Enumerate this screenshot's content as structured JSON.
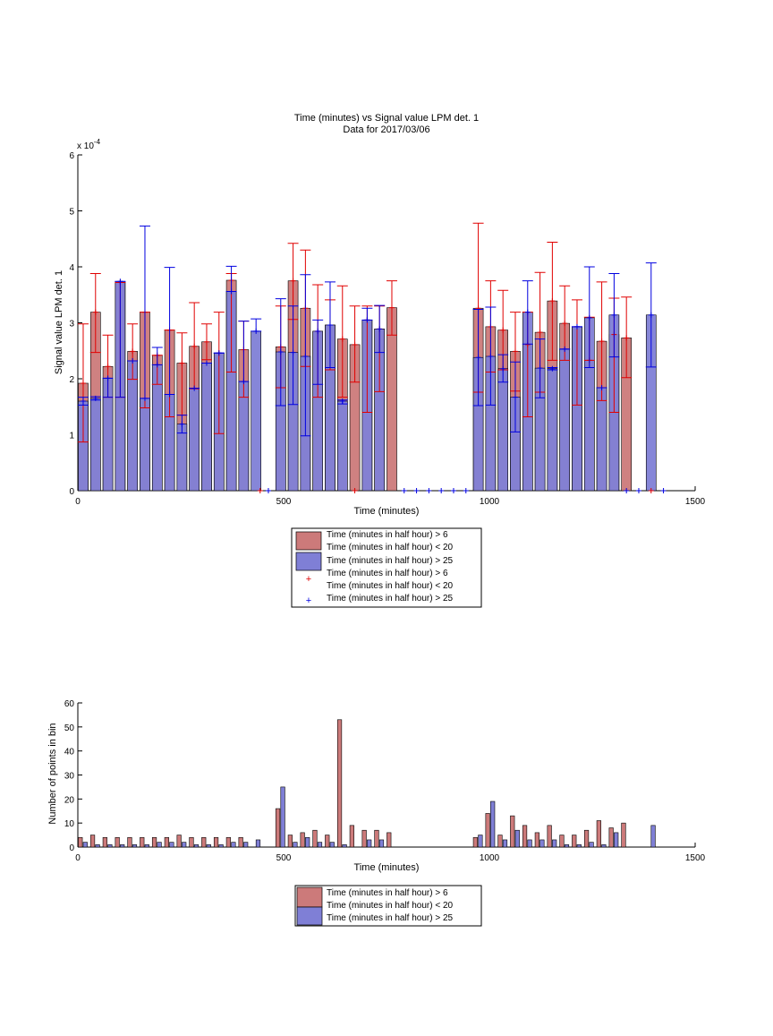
{
  "chart_data": [
    {
      "type": "bar",
      "title": "Time (minutes) vs Signal value LPM det. 1",
      "subtitle": "Data for 2017/03/06",
      "xlabel": "Time (minutes)",
      "ylabel": "Signal value LPM det. 1",
      "y_exponent_label": "x 10",
      "y_exponent_power": "-4",
      "xlim": [
        0,
        1500
      ],
      "ylim": [
        0,
        6
      ],
      "xticks": [
        0,
        500,
        1000,
        1500
      ],
      "yticks": [
        0,
        1,
        2,
        3,
        4,
        5,
        6
      ],
      "bar_width_minutes": 24,
      "colors": {
        "red_series": "#cc7a7a",
        "blue_series": "#7f7fd6",
        "red_line": "#e00000",
        "blue_line": "#0000e0"
      },
      "legend": [
        {
          "label_lines": [
            "Time (minutes in half hour) > 6",
            "Time (minutes in half hour) < 20"
          ],
          "kind": "patch",
          "color": "#cc7a7a"
        },
        {
          "label_lines": [
            "Time (minutes in half hour) > 25"
          ],
          "kind": "patch",
          "color": "#7f7fd6"
        },
        {
          "label_lines": [
            "Time (minutes in half hour) > 6",
            "Time (minutes in half hour) < 20"
          ],
          "kind": "marker",
          "color": "#e00000"
        },
        {
          "label_lines": [
            "Time (minutes in half hour) > 25"
          ],
          "kind": "marker",
          "color": "#0000e0"
        }
      ],
      "series": [
        {
          "name": "Time (minutes in half hour) > 6 Time (minutes in half hour) < 20",
          "points": [
            {
              "x": 13,
              "y": 1.92,
              "lo": 0.87,
              "hi": 2.98
            },
            {
              "x": 43,
              "y": 3.19,
              "lo": 2.47,
              "hi": 3.88
            },
            {
              "x": 73,
              "y": 2.22,
              "lo": 1.67,
              "hi": 2.78
            },
            {
              "x": 103,
              "y": 3.72,
              "lo": 1.67,
              "hi": 3.72
            },
            {
              "x": 133,
              "y": 2.49,
              "lo": 1.99,
              "hi": 2.98
            },
            {
              "x": 163,
              "y": 3.19,
              "lo": 1.48,
              "hi": 3.19
            },
            {
              "x": 193,
              "y": 2.42,
              "lo": 1.9,
              "hi": 2.42
            },
            {
              "x": 223,
              "y": 2.87,
              "lo": 1.32,
              "hi": 2.87
            },
            {
              "x": 253,
              "y": 2.28,
              "lo": 1.35,
              "hi": 2.82
            },
            {
              "x": 283,
              "y": 2.58,
              "lo": 1.82,
              "hi": 3.36
            },
            {
              "x": 313,
              "y": 2.66,
              "lo": 2.34,
              "hi": 2.98
            },
            {
              "x": 343,
              "y": 2.46,
              "lo": 1.02,
              "hi": 3.19
            },
            {
              "x": 373,
              "y": 3.76,
              "lo": 2.12,
              "hi": 3.88
            },
            {
              "x": 403,
              "y": 2.52,
              "lo": 1.67,
              "hi": 3.03
            },
            {
              "x": 493,
              "y": 2.57,
              "lo": 1.84,
              "hi": 3.3
            },
            {
              "x": 523,
              "y": 3.75,
              "lo": 3.06,
              "hi": 4.42
            },
            {
              "x": 553,
              "y": 3.26,
              "lo": 2.22,
              "hi": 4.3
            },
            {
              "x": 583,
              "y": 2.85,
              "lo": 1.67,
              "hi": 3.68
            },
            {
              "x": 613,
              "y": 2.96,
              "lo": 2.16,
              "hi": 3.41
            },
            {
              "x": 643,
              "y": 2.71,
              "lo": 1.67,
              "hi": 3.66
            },
            {
              "x": 673,
              "y": 2.61,
              "lo": 1.94,
              "hi": 3.3
            },
            {
              "x": 703,
              "y": 3.05,
              "lo": 1.4,
              "hi": 3.3
            },
            {
              "x": 733,
              "y": 2.89,
              "lo": 1.77,
              "hi": 3.3
            },
            {
              "x": 763,
              "y": 3.27,
              "lo": 2.78,
              "hi": 3.75
            },
            {
              "x": 973,
              "y": 3.26,
              "lo": 1.76,
              "hi": 4.78
            },
            {
              "x": 1003,
              "y": 2.93,
              "lo": 2.12,
              "hi": 3.75
            },
            {
              "x": 1033,
              "y": 2.87,
              "lo": 2.16,
              "hi": 3.58
            },
            {
              "x": 1063,
              "y": 2.49,
              "lo": 1.78,
              "hi": 3.19
            },
            {
              "x": 1093,
              "y": 2.61,
              "lo": 1.32,
              "hi": 3.19
            },
            {
              "x": 1123,
              "y": 2.83,
              "lo": 1.76,
              "hi": 3.9
            },
            {
              "x": 1153,
              "y": 3.39,
              "lo": 2.33,
              "hi": 4.44
            },
            {
              "x": 1183,
              "y": 2.99,
              "lo": 2.33,
              "hi": 3.66
            },
            {
              "x": 1213,
              "y": 2.93,
              "lo": 1.53,
              "hi": 3.41
            },
            {
              "x": 1243,
              "y": 2.33,
              "lo": 2.33,
              "hi": 3.1
            },
            {
              "x": 1273,
              "y": 2.67,
              "lo": 1.61,
              "hi": 3.73
            },
            {
              "x": 1303,
              "y": 2.79,
              "lo": 1.4,
              "hi": 3.44
            },
            {
              "x": 1333,
              "y": 2.73,
              "lo": 2.02,
              "hi": 3.46
            }
          ],
          "zero_markers_x": [
            443,
            673,
            1393
          ]
        },
        {
          "name": "Time (minutes in half hour) > 25",
          "points": [
            {
              "x": 13,
              "y": 1.6,
              "lo": 1.53,
              "hi": 1.67
            },
            {
              "x": 43,
              "y": 1.65,
              "lo": 1.62,
              "hi": 1.68
            },
            {
              "x": 73,
              "y": 2.01,
              "lo": 1.67,
              "hi": 2.01
            },
            {
              "x": 103,
              "y": 3.74,
              "lo": 1.67,
              "hi": 3.74
            },
            {
              "x": 133,
              "y": 2.32,
              "lo": 2.32,
              "hi": 2.32
            },
            {
              "x": 163,
              "y": 1.65,
              "lo": 1.65,
              "hi": 4.73
            },
            {
              "x": 193,
              "y": 2.25,
              "lo": 2.25,
              "hi": 2.56
            },
            {
              "x": 223,
              "y": 1.72,
              "lo": 1.72,
              "hi": 3.99
            },
            {
              "x": 253,
              "y": 1.19,
              "lo": 1.03,
              "hi": 1.35
            },
            {
              "x": 283,
              "y": 1.83,
              "lo": 1.83,
              "hi": 1.83
            },
            {
              "x": 313,
              "y": 2.28,
              "lo": 2.28,
              "hi": 2.28
            },
            {
              "x": 343,
              "y": 2.46,
              "lo": 2.46,
              "hi": 2.46
            },
            {
              "x": 373,
              "y": 3.56,
              "lo": 3.56,
              "hi": 4.01
            },
            {
              "x": 403,
              "y": 1.95,
              "lo": 1.95,
              "hi": 3.03
            },
            {
              "x": 433,
              "y": 2.85,
              "lo": 2.85,
              "hi": 3.07
            },
            {
              "x": 493,
              "y": 2.48,
              "lo": 1.52,
              "hi": 3.43
            },
            {
              "x": 523,
              "y": 2.47,
              "lo": 1.54,
              "hi": 3.3
            },
            {
              "x": 553,
              "y": 2.4,
              "lo": 0.98,
              "hi": 3.86
            },
            {
              "x": 583,
              "y": 2.85,
              "lo": 1.9,
              "hi": 3.05
            },
            {
              "x": 613,
              "y": 2.96,
              "lo": 2.2,
              "hi": 3.73
            },
            {
              "x": 643,
              "y": 1.6,
              "lo": 1.55,
              "hi": 1.62
            },
            {
              "x": 703,
              "y": 3.05,
              "lo": 3.05,
              "hi": 3.26
            },
            {
              "x": 733,
              "y": 2.89,
              "lo": 2.47,
              "hi": 3.31
            },
            {
              "x": 973,
              "y": 2.38,
              "lo": 1.52,
              "hi": 3.24
            },
            {
              "x": 1003,
              "y": 2.4,
              "lo": 1.53,
              "hi": 3.28
            },
            {
              "x": 1033,
              "y": 2.18,
              "lo": 1.94,
              "hi": 2.43
            },
            {
              "x": 1063,
              "y": 1.67,
              "lo": 1.05,
              "hi": 2.3
            },
            {
              "x": 1093,
              "y": 3.19,
              "lo": 2.62,
              "hi": 3.75
            },
            {
              "x": 1123,
              "y": 2.19,
              "lo": 1.66,
              "hi": 2.71
            },
            {
              "x": 1153,
              "y": 2.18,
              "lo": 2.16,
              "hi": 2.2
            },
            {
              "x": 1183,
              "y": 2.53,
              "lo": 2.53,
              "hi": 2.53
            },
            {
              "x": 1213,
              "y": 2.93,
              "lo": 2.93,
              "hi": 2.93
            },
            {
              "x": 1243,
              "y": 3.09,
              "lo": 2.2,
              "hi": 4.0
            },
            {
              "x": 1273,
              "y": 1.84,
              "lo": 1.84,
              "hi": 1.84
            },
            {
              "x": 1303,
              "y": 3.14,
              "lo": 2.39,
              "hi": 3.88
            },
            {
              "x": 1393,
              "y": 3.14,
              "lo": 2.21,
              "hi": 4.07
            }
          ],
          "zero_markers_x": [
            463,
            793,
            823,
            853,
            883,
            913,
            943,
            1333,
            1363,
            1423
          ]
        }
      ]
    },
    {
      "type": "bar",
      "title": "",
      "xlabel": "Time (minutes)",
      "ylabel": "Number of points in bin",
      "xlim": [
        0,
        1500
      ],
      "ylim": [
        0,
        60
      ],
      "xticks": [
        0,
        500,
        1000,
        1500
      ],
      "yticks": [
        0,
        10,
        20,
        30,
        40,
        50,
        60
      ],
      "bar_width_minutes": 10,
      "legend": [
        {
          "label_lines": [
            "Time (minutes in half hour) > 6",
            "Time (minutes in half hour) < 20"
          ],
          "kind": "patch",
          "color": "#cc7a7a"
        },
        {
          "label_lines": [
            "Time (minutes in half hour) > 25"
          ],
          "kind": "patch",
          "color": "#7f7fd6"
        }
      ],
      "series": [
        {
          "name": "Time (minutes in half hour) > 6 Time (minutes in half hour) < 20",
          "x": [
            6,
            36,
            66,
            96,
            126,
            156,
            186,
            216,
            246,
            276,
            306,
            336,
            366,
            396,
            486,
            516,
            546,
            576,
            606,
            636,
            666,
            696,
            726,
            756,
            966,
            996,
            1026,
            1056,
            1086,
            1116,
            1146,
            1176,
            1206,
            1236,
            1266,
            1296,
            1326
          ],
          "values": [
            4,
            5,
            4,
            4,
            4,
            4,
            4,
            4,
            5,
            4,
            4,
            4,
            4,
            4,
            16,
            5,
            6,
            7,
            5,
            53,
            9,
            7,
            7,
            6,
            4,
            14,
            5,
            13,
            9,
            6,
            9,
            5,
            5,
            7,
            11,
            8,
            10
          ]
        },
        {
          "name": "Time (minutes in half hour) > 25",
          "x": [
            18,
            48,
            78,
            108,
            138,
            168,
            198,
            228,
            258,
            288,
            318,
            348,
            378,
            408,
            438,
            498,
            528,
            558,
            588,
            618,
            648,
            708,
            738,
            978,
            1008,
            1038,
            1068,
            1098,
            1128,
            1158,
            1188,
            1218,
            1248,
            1278,
            1308,
            1398
          ],
          "values": [
            2,
            1,
            1,
            1,
            1,
            1,
            2,
            2,
            2,
            1,
            1,
            1,
            2,
            2,
            3,
            25,
            2,
            4,
            2,
            2,
            1,
            3,
            3,
            5,
            19,
            3,
            7,
            3,
            3,
            3,
            1,
            1,
            2,
            1,
            6,
            9
          ]
        }
      ]
    }
  ]
}
